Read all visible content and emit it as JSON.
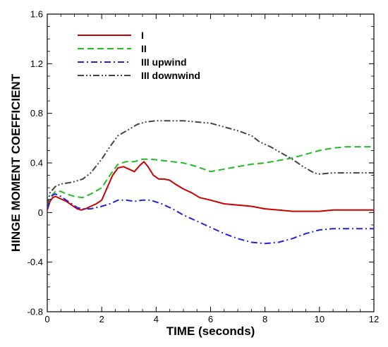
{
  "chart_data": {
    "type": "line",
    "title": "",
    "xlabel": "TIME (seconds)",
    "ylabel": "HINGE MOMENT COEFFICIENT",
    "xlim": [
      0,
      12
    ],
    "ylim": [
      -0.8,
      1.6
    ],
    "xticks": [
      0,
      2,
      4,
      6,
      8,
      10,
      12
    ],
    "yticks": [
      -0.8,
      -0.4,
      0,
      0.4,
      0.8,
      1.2,
      1.6
    ],
    "ytick_labels": [
      "-0.8",
      "-0.4",
      "0",
      "0.4",
      "0.8",
      "1.2",
      "1.6"
    ],
    "grid": false,
    "legend_position": "top-left",
    "series": [
      {
        "name": "I",
        "color": "#cc0000",
        "dash": "solid",
        "x": [
          0,
          0.1,
          0.2,
          0.3,
          0.5,
          0.7,
          0.9,
          1.1,
          1.25,
          1.4,
          1.6,
          1.8,
          2.0,
          2.2,
          2.4,
          2.6,
          2.8,
          3.0,
          3.2,
          3.4,
          3.55,
          3.7,
          3.9,
          4.1,
          4.3,
          4.5,
          4.7,
          5.0,
          5.3,
          5.6,
          6.0,
          6.5,
          7.0,
          7.5,
          8.0,
          8.5,
          9.0,
          9.5,
          10.0,
          10.5,
          11.0,
          12.0
        ],
        "values": [
          0.02,
          0.09,
          0.12,
          0.13,
          0.11,
          0.09,
          0.06,
          0.03,
          0.02,
          0.03,
          0.05,
          0.07,
          0.1,
          0.2,
          0.3,
          0.36,
          0.37,
          0.35,
          0.33,
          0.38,
          0.41,
          0.37,
          0.3,
          0.27,
          0.27,
          0.26,
          0.23,
          0.19,
          0.16,
          0.12,
          0.1,
          0.07,
          0.06,
          0.05,
          0.03,
          0.02,
          0.01,
          0.01,
          0.01,
          0.02,
          0.02,
          0.02
        ]
      },
      {
        "name": "II",
        "color": "#22bb22",
        "dash": "dashed",
        "x": [
          0,
          0.1,
          0.3,
          0.5,
          0.7,
          1.0,
          1.3,
          1.6,
          2.0,
          2.3,
          2.6,
          2.9,
          3.2,
          3.5,
          3.8,
          4.2,
          4.6,
          5.0,
          5.5,
          6.0,
          6.5,
          7.0,
          7.5,
          8.0,
          8.5,
          9.0,
          9.5,
          10.0,
          10.5,
          11.0,
          11.5,
          12.0
        ],
        "values": [
          0.06,
          0.12,
          0.17,
          0.17,
          0.15,
          0.13,
          0.12,
          0.15,
          0.2,
          0.3,
          0.39,
          0.41,
          0.41,
          0.43,
          0.43,
          0.42,
          0.41,
          0.4,
          0.37,
          0.33,
          0.35,
          0.37,
          0.39,
          0.4,
          0.42,
          0.44,
          0.47,
          0.5,
          0.52,
          0.53,
          0.53,
          0.53
        ]
      },
      {
        "name": "III upwind",
        "color": "#2222dd",
        "dash": "dashdot",
        "x": [
          0,
          0.1,
          0.2,
          0.3,
          0.5,
          0.7,
          0.9,
          1.1,
          1.3,
          1.6,
          2.0,
          2.3,
          2.6,
          2.9,
          3.2,
          3.5,
          3.8,
          4.2,
          4.6,
          5.0,
          5.5,
          6.0,
          6.5,
          7.0,
          7.5,
          8.0,
          8.5,
          9.0,
          9.5,
          10.0,
          10.5,
          11.0,
          11.5,
          12.0
        ],
        "values": [
          0.03,
          0.1,
          0.14,
          0.15,
          0.13,
          0.1,
          0.07,
          0.04,
          0.03,
          0.03,
          0.05,
          0.07,
          0.1,
          0.1,
          0.09,
          0.1,
          0.1,
          0.07,
          0.03,
          -0.02,
          -0.07,
          -0.12,
          -0.17,
          -0.21,
          -0.24,
          -0.25,
          -0.24,
          -0.21,
          -0.17,
          -0.14,
          -0.13,
          -0.13,
          -0.13,
          -0.13
        ]
      },
      {
        "name": "III downwind",
        "color": "#444444",
        "dash": "dashdotdot",
        "x": [
          0,
          0.1,
          0.3,
          0.5,
          0.8,
          1.0,
          1.3,
          1.6,
          2.0,
          2.3,
          2.6,
          3.0,
          3.3,
          3.6,
          4.0,
          4.5,
          5.0,
          5.5,
          6.0,
          6.5,
          7.0,
          7.5,
          7.8,
          8.2,
          8.6,
          9.0,
          9.4,
          9.8,
          10.0,
          10.5,
          11.0,
          12.0
        ],
        "values": [
          0.06,
          0.16,
          0.21,
          0.23,
          0.24,
          0.25,
          0.27,
          0.32,
          0.43,
          0.53,
          0.62,
          0.67,
          0.71,
          0.73,
          0.74,
          0.74,
          0.74,
          0.73,
          0.72,
          0.69,
          0.66,
          0.62,
          0.57,
          0.53,
          0.48,
          0.43,
          0.37,
          0.32,
          0.31,
          0.32,
          0.32,
          0.32
        ]
      }
    ]
  }
}
